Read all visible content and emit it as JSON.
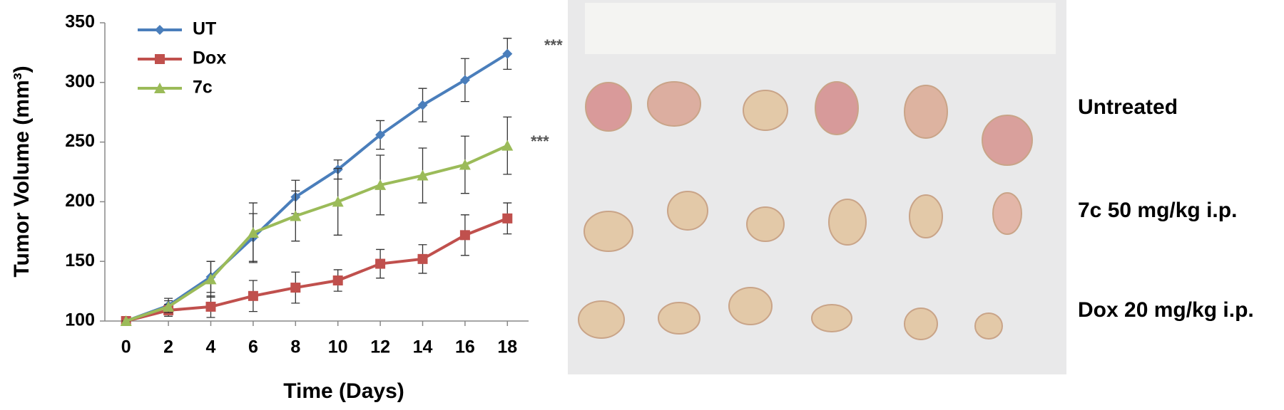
{
  "chart_data": {
    "type": "line",
    "x": [
      0,
      2,
      4,
      6,
      8,
      10,
      12,
      14,
      16,
      18
    ],
    "xlim": [
      -1,
      19
    ],
    "xticks": [
      0,
      2,
      4,
      6,
      8,
      10,
      12,
      14,
      16,
      18
    ],
    "ylim": [
      100,
      350
    ],
    "yticks": [
      100,
      150,
      200,
      250,
      300,
      350
    ],
    "x_label": "Time (Days)",
    "y_label": "Tumor Volume (mm³)",
    "legend": "top-left",
    "annotations": [
      "***",
      "***"
    ],
    "series": [
      {
        "name": "UT",
        "color": "#4a7ebb",
        "marker": "diamond",
        "values": [
          100,
          113,
          137,
          170,
          204,
          227,
          256,
          281,
          302,
          324
        ],
        "errors": [
          0,
          6,
          13,
          20,
          14,
          8,
          12,
          14,
          18,
          13
        ]
      },
      {
        "name": "Dox",
        "color": "#c0504d",
        "marker": "square",
        "values": [
          100,
          109,
          112,
          121,
          128,
          134,
          148,
          152,
          172,
          186
        ],
        "errors": [
          0,
          5,
          9,
          13,
          13,
          9,
          12,
          12,
          17,
          13
        ]
      },
      {
        "name": "7c",
        "color": "#9bbb59",
        "marker": "triangle",
        "values": [
          100,
          112,
          135,
          174,
          188,
          200,
          214,
          222,
          231,
          247
        ],
        "errors": [
          0,
          5,
          15,
          25,
          21,
          28,
          25,
          23,
          24,
          24
        ]
      }
    ]
  },
  "image": {
    "labels": [
      "Untreated",
      "7c 50 mg/kg i.p.",
      "Dox 20 mg/kg i.p."
    ]
  }
}
